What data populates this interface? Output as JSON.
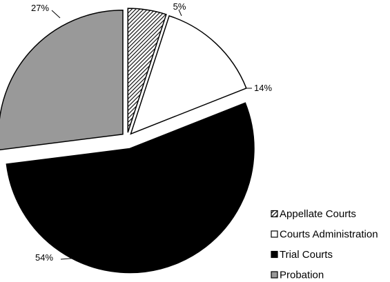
{
  "chart_data": {
    "type": "pie",
    "exploded": true,
    "start_angle_deg": 0,
    "direction": "clockwise",
    "legend_position": "bottom-right",
    "slices": [
      {
        "name": "Appellate Courts",
        "value": 5,
        "label": "5%",
        "fill": "hatched",
        "color": "#000000"
      },
      {
        "name": "Courts Administration",
        "value": 14,
        "label": "14%",
        "fill": "solid",
        "color": "#ffffff"
      },
      {
        "name": "Trial Courts",
        "value": 54,
        "label": "54%",
        "fill": "solid",
        "color": "#000000"
      },
      {
        "name": "Probation",
        "value": 27,
        "label": "27%",
        "fill": "solid",
        "color": "#999999"
      }
    ]
  }
}
